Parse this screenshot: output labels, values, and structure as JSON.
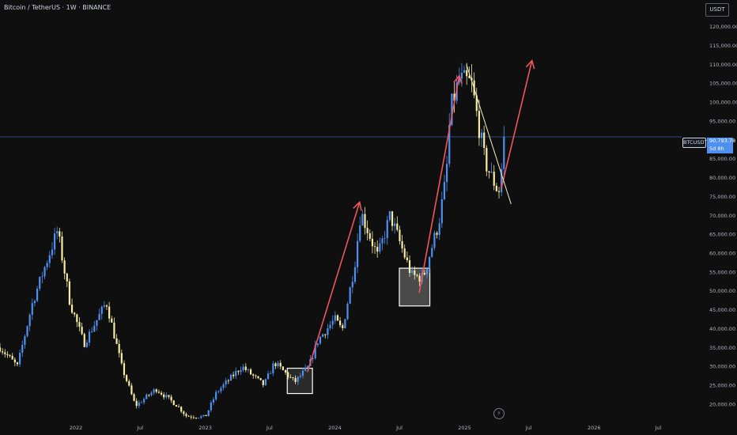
{
  "header": {
    "title": "Bitcoin / TetherUS · 1W · BINANCE"
  },
  "currency": "USDT",
  "price_badge": {
    "symbol": "BTCUSDT",
    "price": "90,793.78",
    "countdown": "5d 8h"
  },
  "icons": {
    "lightning": "lightning-icon"
  },
  "colors": {
    "background": "#0f0f0f",
    "bull": "#4e8ff0",
    "bear": "#f7eca0",
    "arrow": "#f0565c",
    "box_edge": "#ffffff",
    "trendline": "#f5f0c8",
    "price_line": "#2f4a7a"
  },
  "chart_data": {
    "type": "candlestick",
    "title": "Bitcoin / TetherUS · 1W · BINANCE",
    "y_axis_labels": [
      "120,000.00",
      "115,000.00",
      "110,000.00",
      "105,000.00",
      "100,000.00",
      "95,000.00",
      "85,000.00",
      "80,000.00",
      "75,000.00",
      "70,000.00",
      "65,000.00",
      "60,000.00",
      "55,000.00",
      "50,000.00",
      "45,000.00",
      "40,000.00",
      "35,000.00",
      "30,000.00",
      "25,000.00",
      "20,000.00"
    ],
    "x_axis_labels": [
      "2022",
      "Jul",
      "2023",
      "Jul",
      "2024",
      "Jul",
      "2025",
      "Jul",
      "2026",
      "Jul"
    ],
    "ylim": [
      16000,
      126000
    ],
    "x_ticks": [
      {
        "label": "2022",
        "date": "2022-01-01"
      },
      {
        "label": "Jul",
        "date": "2022-07-01"
      },
      {
        "label": "2023",
        "date": "2023-01-01"
      },
      {
        "label": "Jul",
        "date": "2023-07-01"
      },
      {
        "label": "2024",
        "date": "2024-01-01"
      },
      {
        "label": "Jul",
        "date": "2024-07-01"
      },
      {
        "label": "2025",
        "date": "2025-01-01"
      },
      {
        "label": "Jul",
        "date": "2025-07-01"
      },
      {
        "label": "2026",
        "date": "2026-01-01"
      },
      {
        "label": "Jul",
        "date": "2026-07-01"
      }
    ],
    "current_price": 90793.78,
    "series_close": [
      {
        "date": "2021-06-01",
        "close": 35000
      },
      {
        "date": "2021-07-20",
        "close": 30000
      },
      {
        "date": "2021-09-01",
        "close": 47000
      },
      {
        "date": "2021-11-10",
        "close": 66000
      },
      {
        "date": "2021-12-15",
        "close": 47000
      },
      {
        "date": "2022-01-24",
        "close": 36000
      },
      {
        "date": "2022-03-28",
        "close": 47000
      },
      {
        "date": "2022-05-10",
        "close": 30000
      },
      {
        "date": "2022-06-18",
        "close": 19500
      },
      {
        "date": "2022-08-15",
        "close": 24000
      },
      {
        "date": "2022-10-15",
        "close": 19500
      },
      {
        "date": "2022-11-09",
        "close": 16800
      },
      {
        "date": "2023-01-01",
        "close": 16600
      },
      {
        "date": "2023-02-01",
        "close": 23000
      },
      {
        "date": "2023-04-14",
        "close": 30000
      },
      {
        "date": "2023-06-15",
        "close": 25000
      },
      {
        "date": "2023-07-15",
        "close": 31000
      },
      {
        "date": "2023-09-10",
        "close": 25800
      },
      {
        "date": "2023-10-20",
        "close": 30000
      },
      {
        "date": "2023-11-15",
        "close": 37000
      },
      {
        "date": "2024-01-01",
        "close": 42500
      },
      {
        "date": "2024-01-22",
        "close": 39500
      },
      {
        "date": "2024-02-26",
        "close": 57000
      },
      {
        "date": "2024-03-14",
        "close": 71000
      },
      {
        "date": "2024-05-01",
        "close": 59000
      },
      {
        "date": "2024-06-05",
        "close": 70000
      },
      {
        "date": "2024-08-05",
        "close": 54000
      },
      {
        "date": "2024-09-06",
        "close": 53500
      },
      {
        "date": "2024-10-20",
        "close": 68000
      },
      {
        "date": "2024-11-10",
        "close": 80000
      },
      {
        "date": "2024-11-22",
        "close": 98000
      },
      {
        "date": "2024-12-17",
        "close": 106000
      },
      {
        "date": "2025-01-20",
        "close": 105000
      },
      {
        "date": "2025-02-28",
        "close": 84000
      },
      {
        "date": "2025-04-07",
        "close": 76000
      },
      {
        "date": "2025-04-26",
        "close": 90793.78
      }
    ],
    "annotations": {
      "boxes": [
        {
          "from": "2023-08-20",
          "to": "2023-10-30",
          "low": 22800,
          "high": 29500,
          "fill": "#2a2a2a"
        },
        {
          "from": "2024-07-01",
          "to": "2024-09-25",
          "low": 46000,
          "high": 56000,
          "fill": "#4a4a4a"
        }
      ],
      "arrows": [
        {
          "from": {
            "date": "2023-10-16",
            "price": 28500
          },
          "to": {
            "date": "2024-03-11",
            "price": 73500
          }
        },
        {
          "from": {
            "date": "2024-08-26",
            "price": 49500
          },
          "to": {
            "date": "2024-12-17",
            "price": 107000
          }
        },
        {
          "from": {
            "date": "2025-04-14",
            "price": 77000
          },
          "to": {
            "date": "2025-07-10",
            "price": 111000
          }
        }
      ],
      "trendline": {
        "from": {
          "date": "2025-01-06",
          "price": 110000
        },
        "to": {
          "date": "2025-05-12",
          "price": 73000
        }
      }
    }
  }
}
